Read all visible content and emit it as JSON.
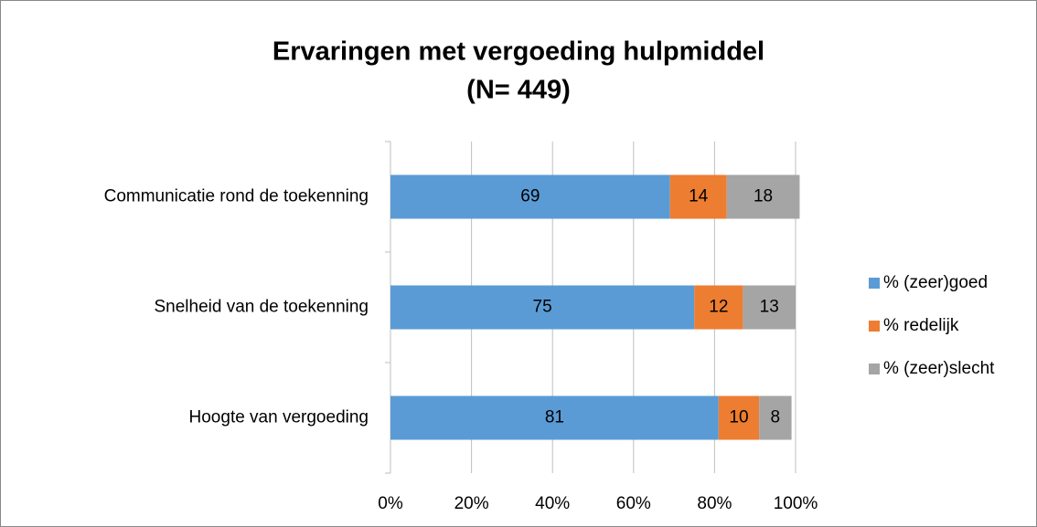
{
  "chart_data": {
    "type": "stacked_barh",
    "title": "Ervaringen met vergoeding hulpmiddel",
    "subtitle": "(N= 449)",
    "categories": [
      "Communicatie rond de toekenning",
      "Snelheid van de toekenning",
      "Hoogte van vergoeding"
    ],
    "series": [
      {
        "name": "% (zeer)goed",
        "color": "#5b9bd5",
        "values": [
          69,
          75,
          81
        ]
      },
      {
        "name": "% redelijk",
        "color": "#ed7d31",
        "values": [
          14,
          12,
          10
        ]
      },
      {
        "name": "% (zeer)slecht",
        "color": "#a5a5a5",
        "values": [
          18,
          13,
          8
        ]
      }
    ],
    "xlim": [
      0,
      100
    ],
    "xticks": [
      {
        "value": 0,
        "label": "0%"
      },
      {
        "value": 20,
        "label": "20%"
      },
      {
        "value": 40,
        "label": "40%"
      },
      {
        "value": 60,
        "label": "60%"
      },
      {
        "value": 80,
        "label": "80%"
      },
      {
        "value": 100,
        "label": "100%"
      }
    ],
    "grid": true,
    "legend": "right"
  }
}
